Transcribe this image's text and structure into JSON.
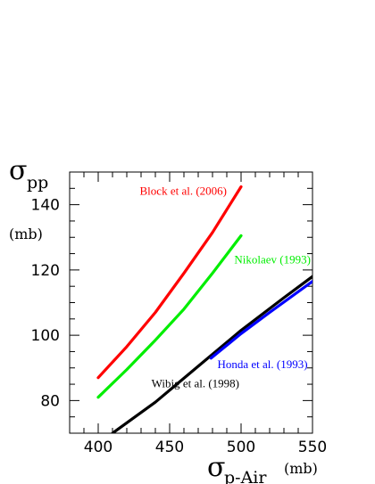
{
  "chart_data": {
    "type": "line",
    "title": "",
    "xlabel": {
      "symbol": "σ",
      "sub": "p-Air",
      "unit": "(mb)"
    },
    "ylabel": {
      "symbol": "σ",
      "sub": "pp",
      "unit": "(mb)"
    },
    "xlim": [
      380,
      550
    ],
    "ylim": [
      70,
      150
    ],
    "xticks": [
      400,
      450,
      500,
      550
    ],
    "yticks": [
      80,
      100,
      120,
      140
    ],
    "grid": false,
    "legend": "none",
    "series": [
      {
        "name": "Block et al. (2006)",
        "color": "#ff0000",
        "x": [
          400,
          420,
          440,
          460,
          480,
          500
        ],
        "y": [
          87,
          96.5,
          107,
          119,
          131.5,
          145.5
        ]
      },
      {
        "name": "Nikolaev (1993)",
        "color": "#00ee00",
        "x": [
          400,
          420,
          440,
          460,
          480,
          500
        ],
        "y": [
          81,
          89.5,
          98.5,
          108,
          119,
          130.5
        ]
      },
      {
        "name": "Wibig et al. (1998)",
        "color": "#000000",
        "x": [
          410,
          440,
          470,
          500,
          530,
          550
        ],
        "y": [
          70,
          79.5,
          90.5,
          101.5,
          111.5,
          118
        ]
      },
      {
        "name": "Honda et al. (1993)",
        "color": "#0000ff",
        "x": [
          479,
          500,
          520,
          550
        ],
        "y": [
          93,
          100.5,
          107,
          116.5
        ]
      }
    ]
  }
}
